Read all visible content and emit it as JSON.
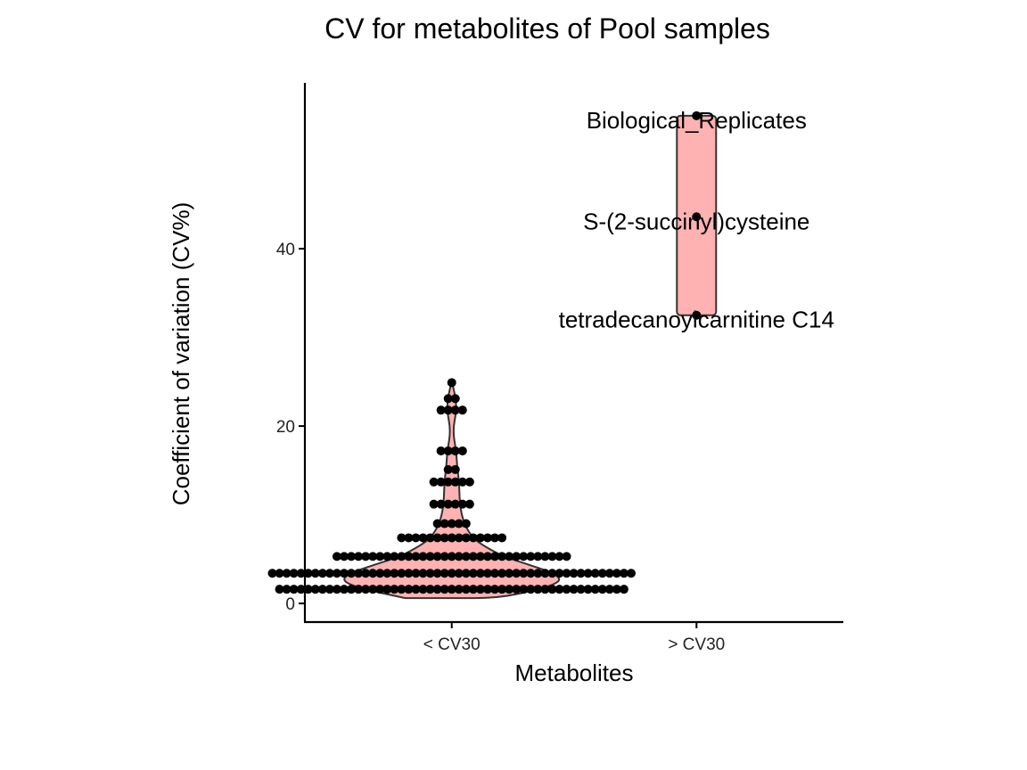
{
  "chart_data": {
    "type": "violin-dotplot",
    "title": "CV for metabolites of Pool samples",
    "xlabel": "Metabolites",
    "ylabel": "Coefficient of variation (CV%)",
    "categories": [
      "< CV30",
      "> CV30"
    ],
    "ylim": [
      -2.1,
      58.7
    ],
    "yticks": [
      0,
      20,
      40
    ],
    "ytick_labels": [
      "0",
      "20",
      "40"
    ],
    "grid": false,
    "legend": "none",
    "fill_color": "#ffb2b2",
    "outline_color": "#333333",
    "dot_color": "#000000",
    "series": [
      {
        "name": "< CV30",
        "dot_rows": [
          {
            "y": 1.6,
            "count": 49
          },
          {
            "y": 3.4,
            "count": 51
          },
          {
            "y": 5.3,
            "count": 33
          },
          {
            "y": 7.4,
            "count": 15
          },
          {
            "y": 9.0,
            "count": 5
          },
          {
            "y": 11.2,
            "count": 6
          },
          {
            "y": 13.7,
            "count": 6
          },
          {
            "y": 15.1,
            "count": 2
          },
          {
            "y": 17.2,
            "count": 4
          },
          {
            "y": 21.8,
            "count": 4
          },
          {
            "y": 23.1,
            "count": 2
          },
          {
            "y": 24.9,
            "count": 1
          }
        ],
        "violin_profile": [
          {
            "y": 0.6,
            "w": 0.19
          },
          {
            "y": 1.6,
            "w": 0.36
          },
          {
            "y": 2.5,
            "w": 0.45
          },
          {
            "y": 3.4,
            "w": 0.42
          },
          {
            "y": 4.5,
            "w": 0.3
          },
          {
            "y": 5.3,
            "w": 0.21
          },
          {
            "y": 6.5,
            "w": 0.13
          },
          {
            "y": 7.4,
            "w": 0.085
          },
          {
            "y": 9.0,
            "w": 0.05
          },
          {
            "y": 11.0,
            "w": 0.033
          },
          {
            "y": 13.7,
            "w": 0.03
          },
          {
            "y": 15.5,
            "w": 0.022
          },
          {
            "y": 17.2,
            "w": 0.018
          },
          {
            "y": 19.5,
            "w": 0.004
          },
          {
            "y": 21.8,
            "w": 0.02
          },
          {
            "y": 23.5,
            "w": 0.014
          },
          {
            "y": 25.0,
            "w": 0.0
          }
        ]
      },
      {
        "name": "> CV30",
        "points": [
          {
            "label": "Biological_Replicates",
            "y": 55.0
          },
          {
            "label": "S-(2-succinyl)cysteine",
            "y": 43.6
          },
          {
            "label": "tetradecanoylcarnitine C14",
            "y": 32.5
          }
        ],
        "violin_range": [
          32.5,
          55.0
        ]
      }
    ]
  }
}
